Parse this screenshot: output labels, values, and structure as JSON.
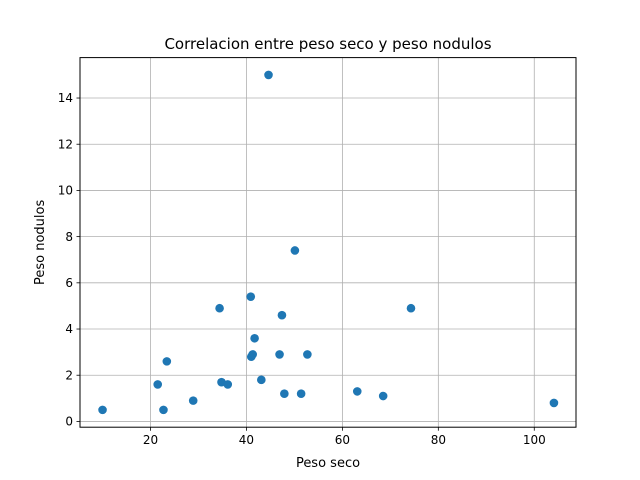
{
  "chart_data": {
    "type": "scatter",
    "title": "Correlacion entre peso seco y peso nodulos",
    "xlabel": "Peso seco",
    "ylabel": "Peso nodulos",
    "xlim": [
      5.3,
      108.7
    ],
    "ylim": [
      -0.25,
      15.75
    ],
    "xticks": [
      20,
      40,
      60,
      80,
      100
    ],
    "yticks": [
      0,
      2,
      4,
      6,
      8,
      10,
      12,
      14
    ],
    "grid": true,
    "marker_color": "#1f77b4",
    "points": [
      {
        "x": 10,
        "y": 0.5
      },
      {
        "x": 21.5,
        "y": 1.6
      },
      {
        "x": 22.7,
        "y": 0.5
      },
      {
        "x": 23.4,
        "y": 2.6
      },
      {
        "x": 28.9,
        "y": 0.9
      },
      {
        "x": 34.4,
        "y": 4.9
      },
      {
        "x": 34.8,
        "y": 1.7
      },
      {
        "x": 36.1,
        "y": 1.6
      },
      {
        "x": 40.9,
        "y": 5.4
      },
      {
        "x": 41.0,
        "y": 2.8
      },
      {
        "x": 41.3,
        "y": 2.9
      },
      {
        "x": 41.7,
        "y": 3.6
      },
      {
        "x": 43.1,
        "y": 1.8
      },
      {
        "x": 44.6,
        "y": 15.0
      },
      {
        "x": 46.9,
        "y": 2.9
      },
      {
        "x": 47.4,
        "y": 4.6
      },
      {
        "x": 47.9,
        "y": 1.2
      },
      {
        "x": 50.1,
        "y": 7.4
      },
      {
        "x": 51.4,
        "y": 1.2
      },
      {
        "x": 52.7,
        "y": 2.9
      },
      {
        "x": 63.1,
        "y": 1.3
      },
      {
        "x": 68.5,
        "y": 1.1
      },
      {
        "x": 74.3,
        "y": 4.9
      },
      {
        "x": 104.1,
        "y": 0.8
      }
    ]
  }
}
